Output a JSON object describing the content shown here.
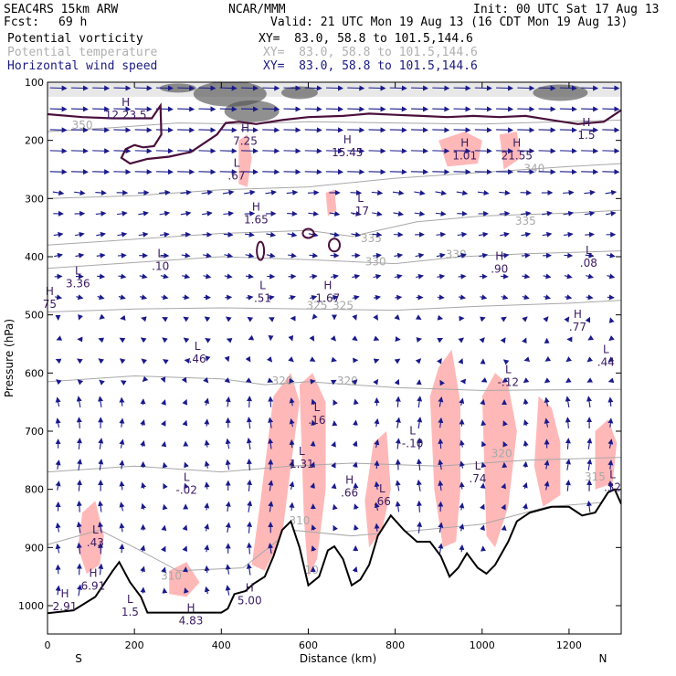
{
  "header": {
    "model": "SEAC4RS 15km ARW",
    "org": "NCAR/MMM",
    "init": "Init: 00 UTC Sat 17 Aug 13",
    "fcst_label": "Fcst:",
    "fcst_value": "69 h",
    "valid": "Valid: 21 UTC Mon 19 Aug 13 (16 CDT Mon 19 Aug 13)",
    "fields": [
      {
        "name": "Potential vorticity",
        "xy": "XY=  83.0, 58.8 to 101.5,144.6"
      },
      {
        "name": "Potential temperature",
        "xy": "XY=  83.0, 58.8 to 101.5,144.6"
      },
      {
        "name": "Horizontal wind speed",
        "xy": "XY=  83.0, 58.8 to 101.5,144.6"
      }
    ]
  },
  "colors": {
    "pv": "#4a0f3c",
    "theta": "#a8a8a8",
    "wind": "#1a1a8c",
    "high_pv_fill": "#ffb8b8",
    "cloud": "#555555",
    "terrain": "#000000"
  },
  "chart_data": {
    "type": "cross-section",
    "xlabel": "Distance (km)",
    "ylabel": "Pressure (hPa)",
    "xlim": [
      0,
      1320
    ],
    "ylim": [
      1050,
      100
    ],
    "xticks": [
      0,
      200,
      400,
      600,
      800,
      1000,
      1200
    ],
    "yticks": [
      100,
      200,
      300,
      400,
      500,
      600,
      700,
      800,
      900,
      1000
    ],
    "x_end_labels": {
      "left": "S",
      "right": "N"
    },
    "terrain": [
      [
        0,
        1013
      ],
      [
        60,
        1008
      ],
      [
        110,
        985
      ],
      [
        150,
        940
      ],
      [
        165,
        925
      ],
      [
        190,
        960
      ],
      [
        215,
        985
      ],
      [
        230,
        1012
      ],
      [
        400,
        1012
      ],
      [
        415,
        1005
      ],
      [
        430,
        980
      ],
      [
        455,
        975
      ],
      [
        475,
        962
      ],
      [
        500,
        950
      ],
      [
        520,
        915
      ],
      [
        540,
        870
      ],
      [
        560,
        855
      ],
      [
        580,
        900
      ],
      [
        600,
        965
      ],
      [
        625,
        950
      ],
      [
        645,
        905
      ],
      [
        660,
        898
      ],
      [
        680,
        920
      ],
      [
        700,
        965
      ],
      [
        720,
        955
      ],
      [
        740,
        930
      ],
      [
        760,
        880
      ],
      [
        790,
        845
      ],
      [
        820,
        870
      ],
      [
        850,
        890
      ],
      [
        880,
        890
      ],
      [
        905,
        915
      ],
      [
        925,
        950
      ],
      [
        945,
        935
      ],
      [
        965,
        910
      ],
      [
        990,
        935
      ],
      [
        1010,
        945
      ],
      [
        1030,
        930
      ],
      [
        1060,
        890
      ],
      [
        1080,
        855
      ],
      [
        1110,
        840
      ],
      [
        1160,
        830
      ],
      [
        1200,
        830
      ],
      [
        1230,
        845
      ],
      [
        1260,
        840
      ],
      [
        1290,
        805
      ],
      [
        1305,
        800
      ],
      [
        1320,
        825
      ]
    ],
    "pv_2pvu_line": [
      [
        0,
        155
      ],
      [
        80,
        160
      ],
      [
        150,
        162
      ],
      [
        240,
        162
      ],
      [
        260,
        140
      ],
      [
        262,
        190
      ],
      [
        245,
        210
      ],
      [
        220,
        212
      ],
      [
        200,
        208
      ],
      [
        180,
        215
      ],
      [
        170,
        230
      ],
      [
        190,
        240
      ],
      [
        230,
        232
      ],
      [
        280,
        228
      ],
      [
        330,
        220
      ],
      [
        360,
        205
      ],
      [
        390,
        190
      ],
      [
        410,
        170
      ],
      [
        440,
        168
      ],
      [
        480,
        172
      ],
      [
        540,
        165
      ],
      [
        600,
        160
      ],
      [
        680,
        158
      ],
      [
        740,
        154
      ],
      [
        800,
        156
      ],
      [
        860,
        158
      ],
      [
        920,
        160
      ],
      [
        980,
        158
      ],
      [
        1040,
        160
      ],
      [
        1100,
        158
      ],
      [
        1160,
        165
      ],
      [
        1220,
        172
      ],
      [
        1280,
        168
      ],
      [
        1320,
        148
      ]
    ],
    "theta_labels": [
      {
        "value": "350",
        "x": 80,
        "p": 180
      },
      {
        "value": "340",
        "x": 1120,
        "p": 255
      },
      {
        "value": "335",
        "x": 1100,
        "p": 345
      },
      {
        "value": "335",
        "x": 745,
        "p": 375
      },
      {
        "value": "330",
        "x": 755,
        "p": 415
      },
      {
        "value": "330",
        "x": 940,
        "p": 402
      },
      {
        "value": "325",
        "x": 620,
        "p": 490
      },
      {
        "value": "325",
        "x": 680,
        "p": 490
      },
      {
        "value": "320",
        "x": 540,
        "p": 620
      },
      {
        "value": "320",
        "x": 690,
        "p": 620
      },
      {
        "value": "320",
        "x": 1045,
        "p": 745
      },
      {
        "value": "315",
        "x": 1260,
        "p": 785
      },
      {
        "value": "310",
        "x": 285,
        "p": 955
      },
      {
        "value": "310",
        "x": 580,
        "p": 860
      },
      {
        "value": "310",
        "x": 600,
        "p": 945
      }
    ],
    "extrema": [
      {
        "type": "H",
        "value": "12.23.5",
        "x": 180,
        "p": 150
      },
      {
        "type": "H",
        "value": "7.25",
        "x": 455,
        "p": 195
      },
      {
        "type": "L",
        "value": ".67",
        "x": 435,
        "p": 255
      },
      {
        "type": "H",
        "value": "15.45",
        "x": 690,
        "p": 215
      },
      {
        "type": "H",
        "value": "1.65",
        "x": 480,
        "p": 330
      },
      {
        "type": "L",
        "value": ".17",
        "x": 720,
        "p": 315
      },
      {
        "type": "H",
        "value": "1.01",
        "x": 960,
        "p": 220
      },
      {
        "type": "H",
        "value": "21.55",
        "x": 1080,
        "p": 220
      },
      {
        "type": "H",
        "value": "1.5",
        "x": 1240,
        "p": 185
      },
      {
        "type": "L",
        "value": ".10",
        "x": 260,
        "p": 410
      },
      {
        "type": "L",
        "value": "3.36",
        "x": 70,
        "p": 440
      },
      {
        "type": "H",
        "value": "75",
        "x": 5,
        "p": 475
      },
      {
        "type": "L",
        "value": ".51",
        "x": 495,
        "p": 465
      },
      {
        "type": "H",
        "value": "1.67",
        "x": 645,
        "p": 465
      },
      {
        "type": "H",
        "value": ".90",
        "x": 1040,
        "p": 415
      },
      {
        "type": "L",
        "value": ".08",
        "x": 1245,
        "p": 405
      },
      {
        "type": "H",
        "value": ".77",
        "x": 1220,
        "p": 515
      },
      {
        "type": "L",
        "value": ".46",
        "x": 345,
        "p": 570
      },
      {
        "type": "L",
        "value": ".44",
        "x": 1285,
        "p": 575
      },
      {
        "type": "L",
        "value": "-.12",
        "x": 1060,
        "p": 610
      },
      {
        "type": "L",
        "value": ".16",
        "x": 620,
        "p": 675
      },
      {
        "type": "L",
        "value": "-.10",
        "x": 840,
        "p": 715
      },
      {
        "type": "L",
        "value": "1.31",
        "x": 585,
        "p": 750
      },
      {
        "type": "L",
        "value": ".74",
        "x": 990,
        "p": 775
      },
      {
        "type": "H",
        "value": ".66",
        "x": 695,
        "p": 800
      },
      {
        "type": "L",
        "value": "-.02",
        "x": 320,
        "p": 795
      },
      {
        "type": "L",
        "value": ".66",
        "x": 770,
        "p": 815
      },
      {
        "type": "L",
        "value": ".32",
        "x": 1300,
        "p": 790
      },
      {
        "type": "L",
        "value": ".43",
        "x": 110,
        "p": 885
      },
      {
        "type": "H",
        "value": "6.91",
        "x": 105,
        "p": 960
      },
      {
        "type": "H",
        "value": "2.91",
        "x": 40,
        "p": 995
      },
      {
        "type": "L",
        "value": "1.5",
        "x": 190,
        "p": 1005
      },
      {
        "type": "H",
        "value": "5.00",
        "x": 465,
        "p": 985
      },
      {
        "type": "H",
        "value": "4.83",
        "x": 330,
        "p": 1020
      }
    ]
  }
}
